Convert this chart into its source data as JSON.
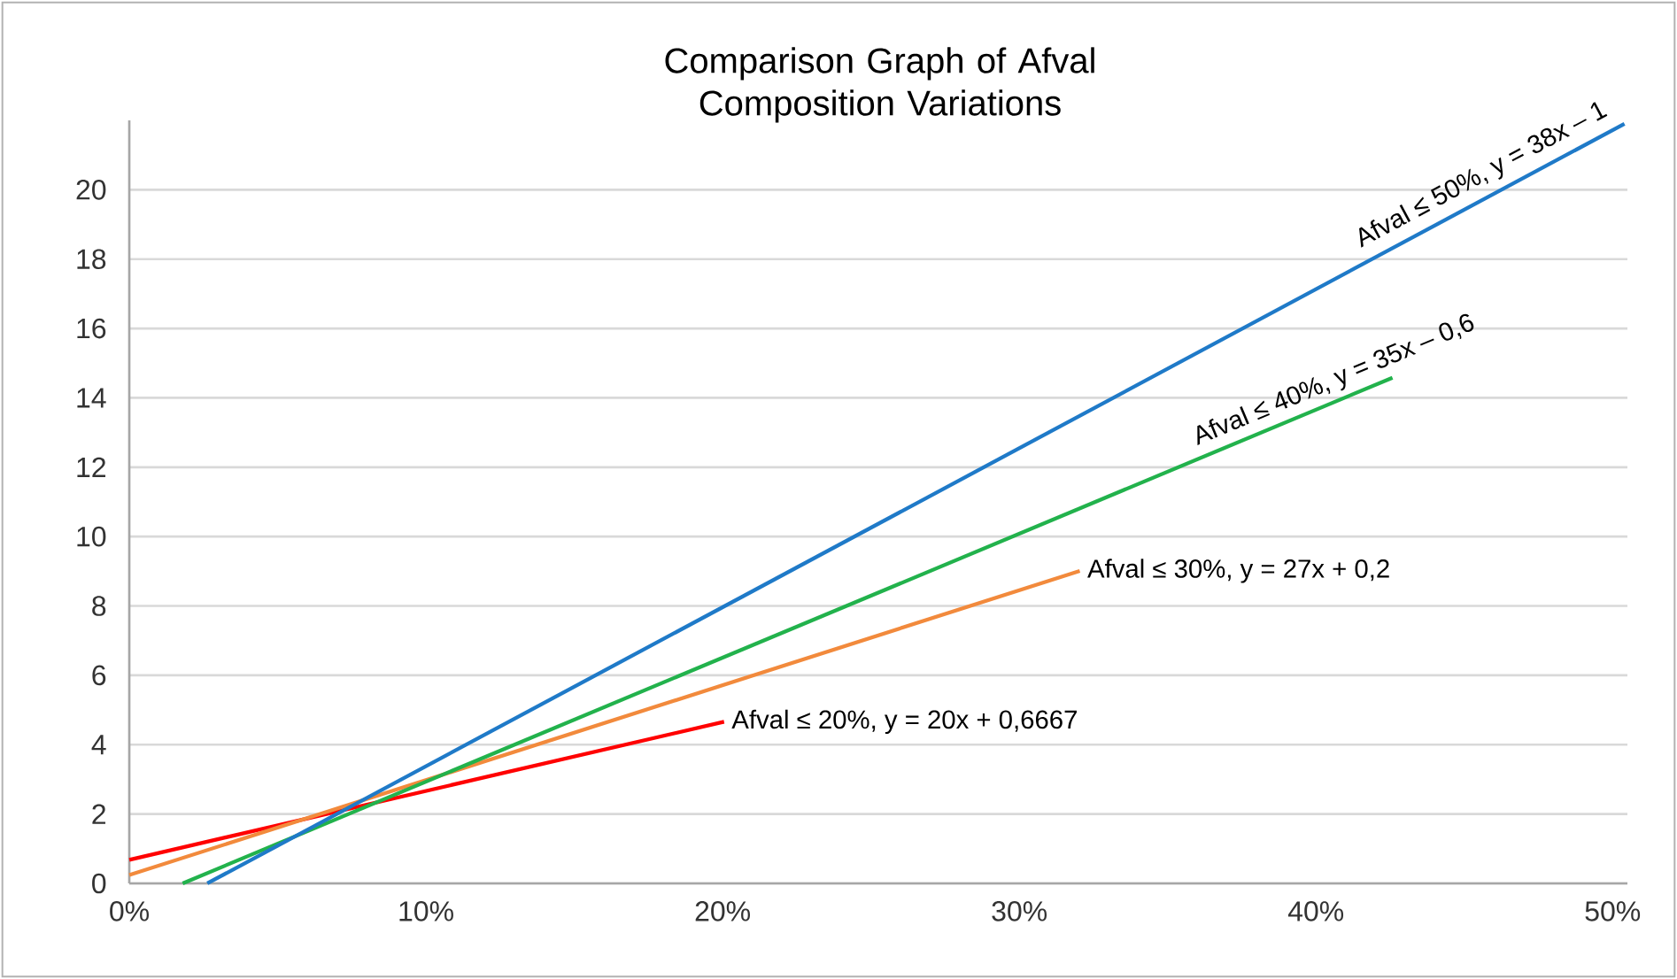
{
  "chart_data": {
    "type": "line",
    "title": "Comparison Graph of Afval Composition Variations",
    "xlim": [
      0,
      0.505
    ],
    "ylim": [
      0,
      22
    ],
    "xticks": [
      {
        "value": 0,
        "label": "0%"
      },
      {
        "value": 0.1,
        "label": "10%"
      },
      {
        "value": 0.2,
        "label": "20%"
      },
      {
        "value": 0.3,
        "label": "30%"
      },
      {
        "value": 0.4,
        "label": "40%"
      },
      {
        "value": 0.5,
        "label": "50%"
      }
    ],
    "yticks": [
      0,
      2,
      4,
      6,
      8,
      10,
      12,
      14,
      16,
      18,
      20
    ],
    "grid": "y",
    "line_style": "solid",
    "marker": "none",
    "series": [
      {
        "color": "#ff0000",
        "x": [
          0,
          0.2005
        ],
        "values": [
          0.68,
          4.66
        ]
      },
      {
        "color": "#f28a3c",
        "x": [
          0,
          0.3204
        ],
        "values": [
          0.24,
          9.01
        ]
      },
      {
        "color": "#22b24c",
        "x": [
          0.018,
          0.4258
        ],
        "values": [
          0,
          14.58
        ]
      },
      {
        "color": "#1f7ac8",
        "x": [
          0.0263,
          0.504
        ],
        "values": [
          0,
          21.9
        ]
      }
    ],
    "annotations": [
      {
        "text": "Afval ≤ 20%, y = 20x + 0,6667",
        "x": 0.2005,
        "y": 4.66
      },
      {
        "text": "Afval ≤ 30%, y = 27x + 0,2",
        "x": 0.3204,
        "y": 9.01
      },
      {
        "text": "Afval ≤ 40%, y = 35x – 0,6",
        "x": 0.4258,
        "y": 14.58
      },
      {
        "text": "Afval ≤ 50%, y = 38x – 1",
        "x": 0.504,
        "y": 21.9
      }
    ]
  }
}
